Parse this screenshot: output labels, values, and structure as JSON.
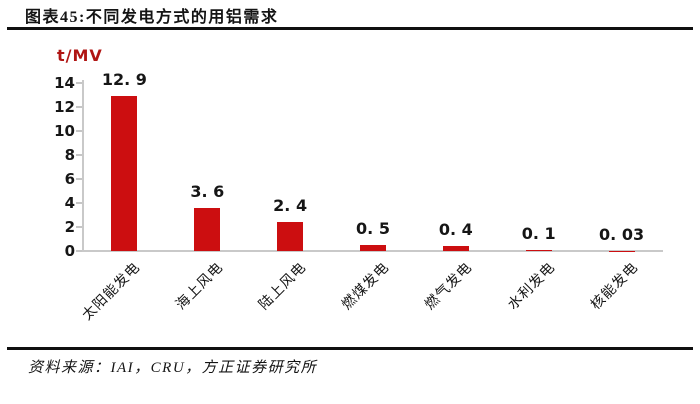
{
  "header": {
    "title": "图表45:不同发电方式的用铝需求"
  },
  "footer": {
    "source": "资料来源：IAI，CRU，方正证券研究所"
  },
  "colors": {
    "bar": "#cc0e10",
    "axis": "#c9c9c9",
    "unit_label": "#b01513",
    "text": "#161616",
    "rule": "#101010"
  },
  "chart_data": {
    "type": "bar",
    "title": "不同发电方式的用铝需求",
    "unit_label": "t/MV",
    "categories": [
      "太阳能发电",
      "海上风电",
      "陆上风电",
      "燃煤发电",
      "燃气发电",
      "水利发电",
      "核能发电"
    ],
    "values": [
      12.9,
      3.6,
      2.4,
      0.5,
      0.4,
      0.1,
      0.03
    ],
    "value_labels": [
      "12. 9",
      "3. 6",
      "2. 4",
      "0. 5",
      "0. 4",
      "0. 1",
      "0. 03"
    ],
    "xlabel": "",
    "ylabel": "t/MV",
    "yticks": [
      0,
      2,
      4,
      6,
      8,
      10,
      12,
      14
    ],
    "ylim": [
      0,
      14
    ],
    "grid": false,
    "legend": false,
    "bar_color": "#cc0e10"
  }
}
